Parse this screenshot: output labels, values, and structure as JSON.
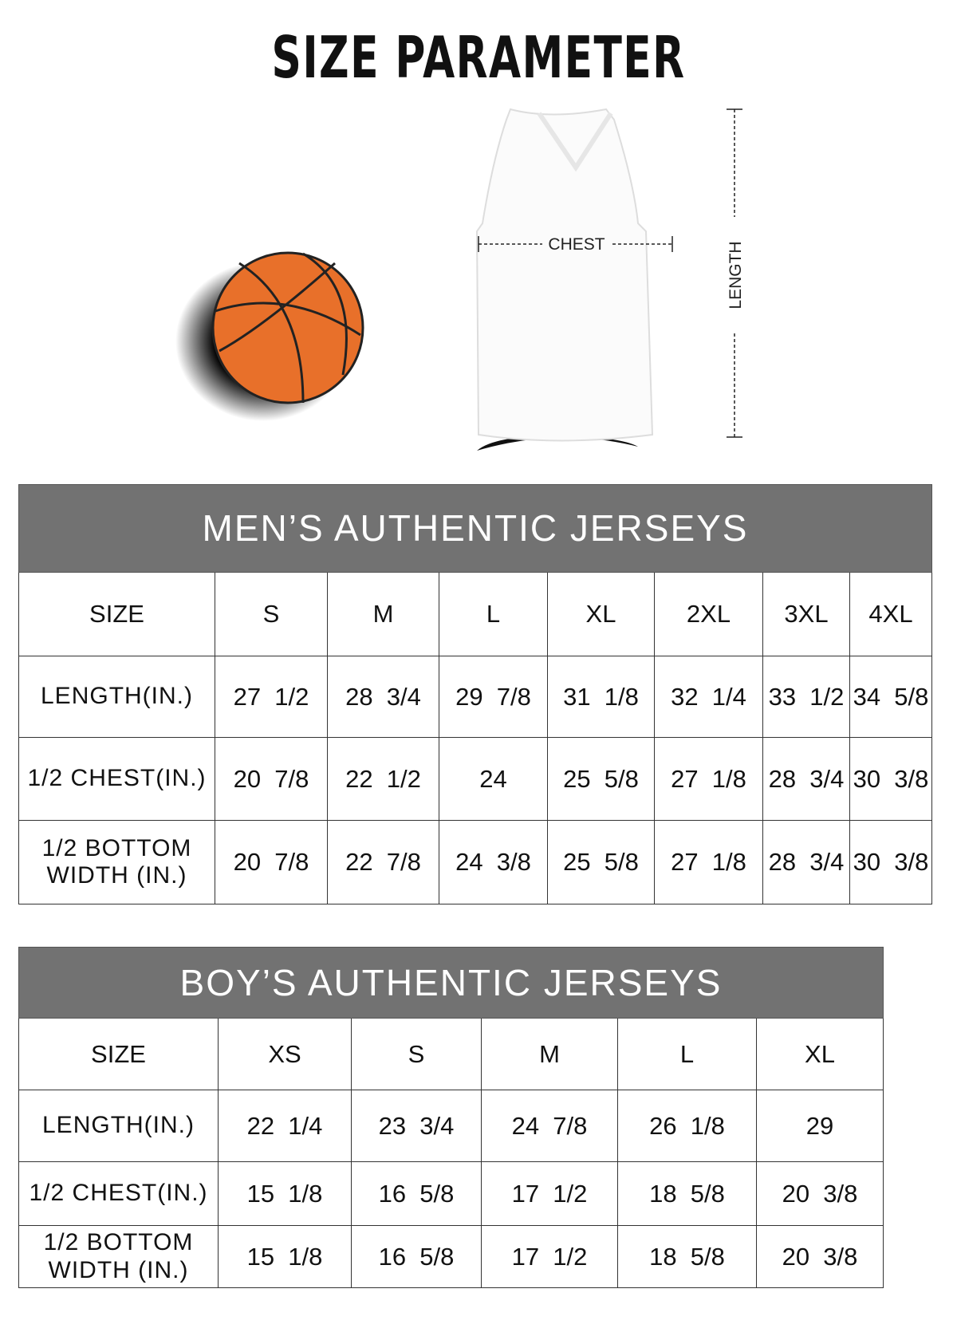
{
  "title": "SIZE PARAMETER",
  "diagram": {
    "chest_label": "CHEST",
    "length_label": "LENGTH",
    "ball_color": "#e8702a"
  },
  "mens": {
    "heading": "MEN’S AUTHENTIC JERSEYS",
    "header_label": "SIZE",
    "sizes": [
      "S",
      "M",
      "L",
      "XL",
      "2XL",
      "3XL",
      "4XL"
    ],
    "rows": [
      {
        "label": "LENGTH(IN.)",
        "values": [
          "27  1/2",
          "28  3/4",
          "29  7/8",
          "31  1/8",
          "32  1/4",
          "33  1/2",
          "34  5/8"
        ]
      },
      {
        "label": "1/2 CHEST(IN.)",
        "values": [
          "20  7/8",
          "22  1/2",
          "24",
          "25  5/8",
          "27  1/8",
          "28  3/4",
          "30  3/8"
        ]
      },
      {
        "label": "1/2 BOTTOM WIDTH  (IN.)",
        "values": [
          "20  7/8",
          "22  7/8",
          "24  3/8",
          "25  5/8",
          "27  1/8",
          "28  3/4",
          "30  3/8"
        ]
      }
    ]
  },
  "boys": {
    "heading": "BOY’S AUTHENTIC JERSEYS",
    "header_label": "SIZE",
    "sizes": [
      "XS",
      "S",
      "M",
      "L",
      "XL"
    ],
    "rows": [
      {
        "label": "LENGTH(IN.)",
        "values": [
          "22  1/4",
          "23  3/4",
          "24  7/8",
          "26  1/8",
          "29"
        ]
      },
      {
        "label": "1/2 CHEST(IN.)",
        "values": [
          "15  1/8",
          "16  5/8",
          "17  1/2",
          "18  5/8",
          "20  3/8"
        ]
      },
      {
        "label": "1/2 BOTTOM WIDTH  (IN.)",
        "values": [
          "15  1/8",
          "16  5/8",
          "17  1/2",
          "18  5/8",
          "20  3/8"
        ]
      }
    ]
  }
}
